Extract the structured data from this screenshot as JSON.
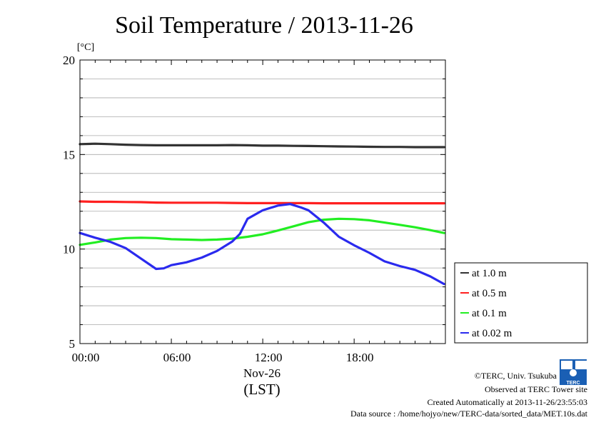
{
  "chart_data": {
    "type": "line",
    "title": "Soil Temperature / 2013-11-26",
    "ylabel": "[°C]",
    "xlabel": "(LST)",
    "date_label": "Nov-26",
    "ylim": [
      5,
      20
    ],
    "y_ticks": [
      5,
      10,
      15,
      20
    ],
    "y_minor_step": 1,
    "grid": true,
    "x_range_hours": [
      0,
      23.99
    ],
    "x_ticks": [
      {
        "hour": 0,
        "label": "00:00"
      },
      {
        "hour": 6,
        "label": "06:00"
      },
      {
        "hour": 12,
        "label": "12:00"
      },
      {
        "hour": 18,
        "label": "18:00"
      }
    ],
    "legend_position": "right",
    "series": [
      {
        "name": "at 1.0 m",
        "color": "#333333",
        "x": [
          0,
          1,
          2,
          3,
          4,
          5,
          6,
          7,
          8,
          9,
          10,
          11,
          12,
          13,
          14,
          15,
          16,
          17,
          18,
          19,
          20,
          21,
          22,
          23,
          23.9
        ],
        "y": [
          15.55,
          15.57,
          15.55,
          15.52,
          15.5,
          15.49,
          15.49,
          15.49,
          15.49,
          15.49,
          15.5,
          15.49,
          15.47,
          15.47,
          15.46,
          15.45,
          15.44,
          15.43,
          15.42,
          15.41,
          15.4,
          15.4,
          15.39,
          15.39,
          15.39
        ]
      },
      {
        "name": "at 0.5 m",
        "color": "#ff2020",
        "x": [
          0,
          1,
          2,
          3,
          4,
          5,
          6,
          7,
          8,
          9,
          10,
          11,
          12,
          13,
          14,
          15,
          16,
          17,
          18,
          19,
          20,
          21,
          22,
          23,
          23.9
        ],
        "y": [
          12.52,
          12.5,
          12.5,
          12.49,
          12.48,
          12.46,
          12.45,
          12.45,
          12.45,
          12.45,
          12.44,
          12.43,
          12.43,
          12.43,
          12.43,
          12.43,
          12.42,
          12.42,
          12.42,
          12.42,
          12.42,
          12.42,
          12.42,
          12.42,
          12.42
        ]
      },
      {
        "name": "at 0.1 m",
        "color": "#22ee22",
        "x": [
          0,
          1,
          2,
          3,
          4,
          5,
          6,
          7,
          8,
          9,
          10,
          11,
          12,
          13,
          14,
          15,
          16,
          17,
          18,
          19,
          20,
          21,
          22,
          23,
          23.9
        ],
        "y": [
          10.22,
          10.35,
          10.5,
          10.58,
          10.6,
          10.58,
          10.52,
          10.5,
          10.48,
          10.5,
          10.55,
          10.65,
          10.78,
          10.98,
          11.2,
          11.42,
          11.55,
          11.6,
          11.58,
          11.52,
          11.4,
          11.28,
          11.15,
          11.0,
          10.85
        ]
      },
      {
        "name": "at 0.02 m",
        "color": "#2a2aee",
        "x": [
          0,
          1,
          2,
          3,
          4,
          5,
          5.5,
          6,
          7,
          8,
          9,
          10,
          10.5,
          11,
          12,
          13,
          13.8,
          14.5,
          15,
          16,
          17,
          18,
          19,
          20,
          21,
          22,
          23,
          23.9
        ],
        "y": [
          10.85,
          10.6,
          10.38,
          10.05,
          9.5,
          8.95,
          8.98,
          9.15,
          9.3,
          9.55,
          9.9,
          10.4,
          10.8,
          11.6,
          12.05,
          12.3,
          12.38,
          12.2,
          12.05,
          11.4,
          10.65,
          10.2,
          9.8,
          9.35,
          9.1,
          8.9,
          8.55,
          8.15
        ]
      }
    ]
  },
  "credits": {
    "copyright": "©TERC, Univ. Tsukuba",
    "observed": "Observed at TERC Tower site",
    "created": "Created Automatically at 2013-11-26/23:55:03",
    "source": "Data source : /home/hojyo/new/TERC-data/sorted_data/MET.10s.dat"
  },
  "logo": {
    "text": "TERC",
    "color": "#1a5fb4",
    "icon": "terc-logo-icon"
  }
}
